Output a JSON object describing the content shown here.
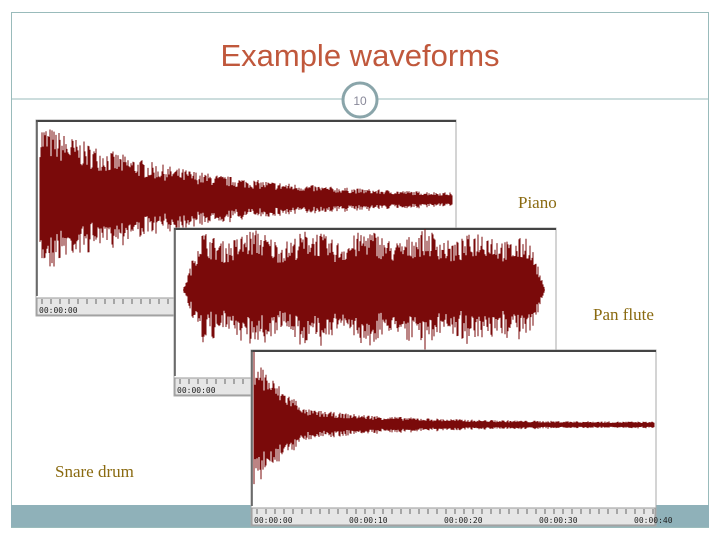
{
  "header": {
    "title": "Example waveforms",
    "page_number": "10"
  },
  "waveforms": [
    {
      "label": "Piano",
      "timeline": [
        "00:00:00"
      ]
    },
    {
      "label": "Pan flute",
      "timeline": [
        "00:00:00"
      ]
    },
    {
      "label": "Snare drum",
      "timeline": [
        "00:00:00",
        "00:00:10",
        "00:00:20",
        "00:00:30",
        "00:00:40"
      ]
    }
  ]
}
